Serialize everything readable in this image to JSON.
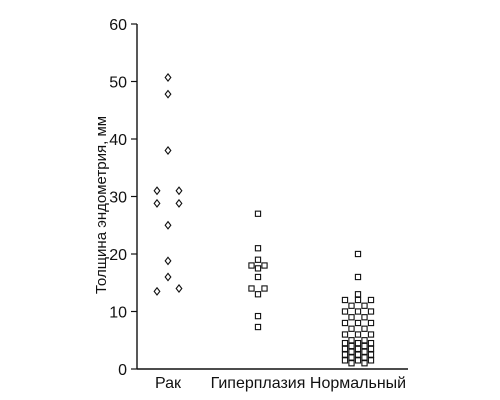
{
  "chart_data": {
    "type": "scatter",
    "title": "",
    "ylabel": "Толщина эндометрия, мм",
    "xlabel": "",
    "ylim": [
      0,
      60
    ],
    "yticks": [
      0,
      10,
      20,
      30,
      40,
      50,
      60
    ],
    "grid": false,
    "legend": "none",
    "categories": [
      "Рак",
      "Гиперплазия",
      "Нормальный"
    ],
    "series": [
      {
        "category": "Рак",
        "marker": "diamond",
        "points": [
          {
            "x": "Рак",
            "y": 50.7,
            "col": 0
          },
          {
            "x": "Рак",
            "y": 47.8,
            "col": 0
          },
          {
            "x": "Рак",
            "y": 38.0,
            "col": 0
          },
          {
            "x": "Рак",
            "y": 31.0,
            "col": -1
          },
          {
            "x": "Рак",
            "y": 31.0,
            "col": 1
          },
          {
            "x": "Рак",
            "y": 28.8,
            "col": -1
          },
          {
            "x": "Рак",
            "y": 28.8,
            "col": 1
          },
          {
            "x": "Рак",
            "y": 25.0,
            "col": 0
          },
          {
            "x": "Рак",
            "y": 18.8,
            "col": 0
          },
          {
            "x": "Рак",
            "y": 16.0,
            "col": 0
          },
          {
            "x": "Рак",
            "y": 14.0,
            "col": 1
          },
          {
            "x": "Рак",
            "y": 13.5,
            "col": -1
          }
        ]
      },
      {
        "category": "Гиперплазия",
        "marker": "square",
        "points": [
          {
            "x": "Гиперплазия",
            "y": 27.0,
            "col": 0
          },
          {
            "x": "Гиперплазия",
            "y": 21.0,
            "col": 0
          },
          {
            "x": "Гиперплазия",
            "y": 19.0,
            "col": 0
          },
          {
            "x": "Гиперплазия",
            "y": 18.0,
            "col": -1
          },
          {
            "x": "Гиперплазия",
            "y": 18.0,
            "col": 1
          },
          {
            "x": "Гиперплазия",
            "y": 17.5,
            "col": 0
          },
          {
            "x": "Гиперплазия",
            "y": 16.0,
            "col": 0
          },
          {
            "x": "Гиперплазия",
            "y": 14.0,
            "col": -1
          },
          {
            "x": "Гиперплазия",
            "y": 14.0,
            "col": 1
          },
          {
            "x": "Гиперплазия",
            "y": 13.0,
            "col": 0
          },
          {
            "x": "Гиперплазия",
            "y": 9.2,
            "col": 0
          },
          {
            "x": "Гиперплазия",
            "y": 7.3,
            "col": 0
          }
        ]
      },
      {
        "category": "Нормальный",
        "marker": "square",
        "points": [
          {
            "x": "Нормальный",
            "y": 20.0,
            "col": 0
          },
          {
            "x": "Нормальный",
            "y": 16.0,
            "col": 0
          },
          {
            "x": "Нормальный",
            "y": 13.0,
            "col": 0
          },
          {
            "x": "Нормальный",
            "y": 12.0,
            "col": -2
          },
          {
            "x": "Нормальный",
            "y": 12.0,
            "col": 0
          },
          {
            "x": "Нормальный",
            "y": 12.0,
            "col": 2
          },
          {
            "x": "Нормальный",
            "y": 11.0,
            "col": -1
          },
          {
            "x": "Нормальный",
            "y": 11.0,
            "col": 1
          },
          {
            "x": "Нормальный",
            "y": 10.0,
            "col": -2
          },
          {
            "x": "Нормальный",
            "y": 10.0,
            "col": 0
          },
          {
            "x": "Нормальный",
            "y": 10.0,
            "col": 2
          },
          {
            "x": "Нормальный",
            "y": 9.0,
            "col": -1
          },
          {
            "x": "Нормальный",
            "y": 9.0,
            "col": 1
          },
          {
            "x": "Нормальный",
            "y": 8.0,
            "col": -2
          },
          {
            "x": "Нормальный",
            "y": 8.0,
            "col": 0
          },
          {
            "x": "Нормальный",
            "y": 8.0,
            "col": 2
          },
          {
            "x": "Нормальный",
            "y": 7.0,
            "col": -1
          },
          {
            "x": "Нормальный",
            "y": 7.0,
            "col": 1
          },
          {
            "x": "Нормальный",
            "y": 6.0,
            "col": -2
          },
          {
            "x": "Нормальный",
            "y": 6.0,
            "col": 0
          },
          {
            "x": "Нормальный",
            "y": 6.0,
            "col": 2
          },
          {
            "x": "Нормальный",
            "y": 5.0,
            "col": -1
          },
          {
            "x": "Нормальный",
            "y": 5.0,
            "col": 1
          },
          {
            "x": "Нормальный",
            "y": 4.5,
            "col": -2
          },
          {
            "x": "Нормальный",
            "y": 4.5,
            "col": 0
          },
          {
            "x": "Нормальный",
            "y": 4.5,
            "col": 2
          },
          {
            "x": "Нормальный",
            "y": 4.0,
            "col": -1
          },
          {
            "x": "Нормальный",
            "y": 4.0,
            "col": 1
          },
          {
            "x": "Нормальный",
            "y": 3.5,
            "col": -2
          },
          {
            "x": "Нормальный",
            "y": 3.5,
            "col": 0
          },
          {
            "x": "Нормальный",
            "y": 3.5,
            "col": 2
          },
          {
            "x": "Нормальный",
            "y": 3.0,
            "col": -1
          },
          {
            "x": "Нормальный",
            "y": 3.0,
            "col": 1
          },
          {
            "x": "Нормальный",
            "y": 2.5,
            "col": -2
          },
          {
            "x": "Нормальный",
            "y": 2.5,
            "col": 0
          },
          {
            "x": "Нормальный",
            "y": 2.5,
            "col": 2
          },
          {
            "x": "Нормальный",
            "y": 2.0,
            "col": -1
          },
          {
            "x": "Нормальный",
            "y": 2.0,
            "col": 1
          },
          {
            "x": "Нормальный",
            "y": 1.5,
            "col": -2
          },
          {
            "x": "Нормальный",
            "y": 1.5,
            "col": 0
          },
          {
            "x": "Нормальный",
            "y": 1.5,
            "col": 2
          },
          {
            "x": "Нормальный",
            "y": 1.0,
            "col": -1
          },
          {
            "x": "Нормальный",
            "y": 1.0,
            "col": 1
          }
        ]
      }
    ]
  }
}
